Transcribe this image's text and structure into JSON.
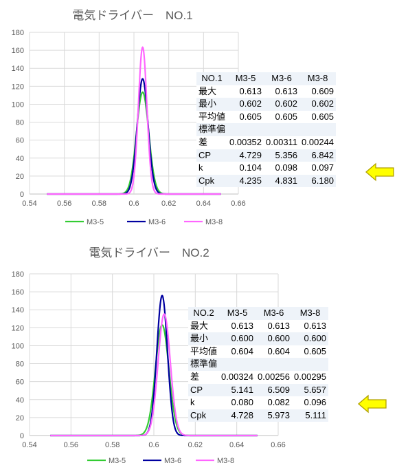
{
  "charts": [
    {
      "title": "電気ドライバー　NO.1",
      "table": {
        "header": [
          "NO.1",
          "M3-5",
          "M3-6",
          "M3-8"
        ],
        "rows": [
          [
            "最大",
            "0.613",
            "0.613",
            "0.609"
          ],
          [
            "最小",
            "0.602",
            "0.602",
            "0.602"
          ],
          [
            "平均値",
            "0.605",
            "0.605",
            "0.605"
          ],
          [
            "標準偏",
            "",
            "",
            ""
          ],
          [
            "差",
            "0.00352",
            "0.00311",
            "0.00244"
          ],
          [
            "CP",
            "4.729",
            "5.356",
            "6.842"
          ],
          [
            "k",
            "0.104",
            "0.098",
            "0.097"
          ],
          [
            "Cpk",
            "4.235",
            "4.831",
            "6.180"
          ]
        ]
      }
    },
    {
      "title": "電気ドライバー　NO.2",
      "table": {
        "header": [
          "NO.2",
          "M3-5",
          "M3-6",
          "M3-8"
        ],
        "rows": [
          [
            "最大",
            "0.613",
            "0.613",
            "0.613"
          ],
          [
            "最小",
            "0.600",
            "0.600",
            "0.600"
          ],
          [
            "平均値",
            "0.604",
            "0.604",
            "0.605"
          ],
          [
            "標準偏",
            "",
            "",
            ""
          ],
          [
            "差",
            "0.00324",
            "0.00256",
            "0.00295"
          ],
          [
            "CP",
            "5.141",
            "6.509",
            "5.657"
          ],
          [
            "k",
            "0.080",
            "0.082",
            "0.096"
          ],
          [
            "Cpk",
            "4.728",
            "5.973",
            "5.111"
          ]
        ]
      }
    }
  ],
  "colors": {
    "M3-5": "#33cc33",
    "M3-6": "#0000a0",
    "M3-8": "#ff66ff",
    "arrow_fill": "#ffff00",
    "arrow_stroke": "#b0a000"
  },
  "chart_data": [
    {
      "type": "line",
      "title": "電気ドライバー　NO.1",
      "xlim": [
        0.54,
        0.66
      ],
      "ylim": [
        0,
        180
      ],
      "xticks": [
        "0.54",
        "0.56",
        "0.58",
        "0.6",
        "0.62",
        "0.64",
        "0.66"
      ],
      "yticks": [
        "0",
        "20",
        "40",
        "60",
        "80",
        "100",
        "120",
        "140",
        "160",
        "180"
      ],
      "grid": true,
      "legend": "bottom",
      "series": [
        {
          "name": "M3-5",
          "mean": 0.605,
          "sd": 0.00352,
          "x_range": [
            0.55,
            0.65
          ]
        },
        {
          "name": "M3-6",
          "mean": 0.605,
          "sd": 0.00311,
          "x_range": [
            0.55,
            0.65
          ]
        },
        {
          "name": "M3-8",
          "mean": 0.605,
          "sd": 0.00244,
          "x_range": [
            0.55,
            0.65
          ]
        }
      ]
    },
    {
      "type": "line",
      "title": "電気ドライバー　NO.2",
      "xlim": [
        0.54,
        0.66
      ],
      "ylim": [
        0,
        180
      ],
      "xticks": [
        "0.54",
        "0.56",
        "0.58",
        "0.6",
        "0.62",
        "0.64",
        "0.66"
      ],
      "yticks": [
        "0",
        "20",
        "40",
        "60",
        "80",
        "100",
        "120",
        "140",
        "160",
        "180"
      ],
      "grid": true,
      "legend": "bottom",
      "series": [
        {
          "name": "M3-5",
          "mean": 0.604,
          "sd": 0.00324,
          "x_range": [
            0.55,
            0.65
          ]
        },
        {
          "name": "M3-6",
          "mean": 0.604,
          "sd": 0.00256,
          "x_range": [
            0.55,
            0.65
          ]
        },
        {
          "name": "M3-8",
          "mean": 0.605,
          "sd": 0.00295,
          "x_range": [
            0.55,
            0.65
          ]
        }
      ]
    }
  ]
}
